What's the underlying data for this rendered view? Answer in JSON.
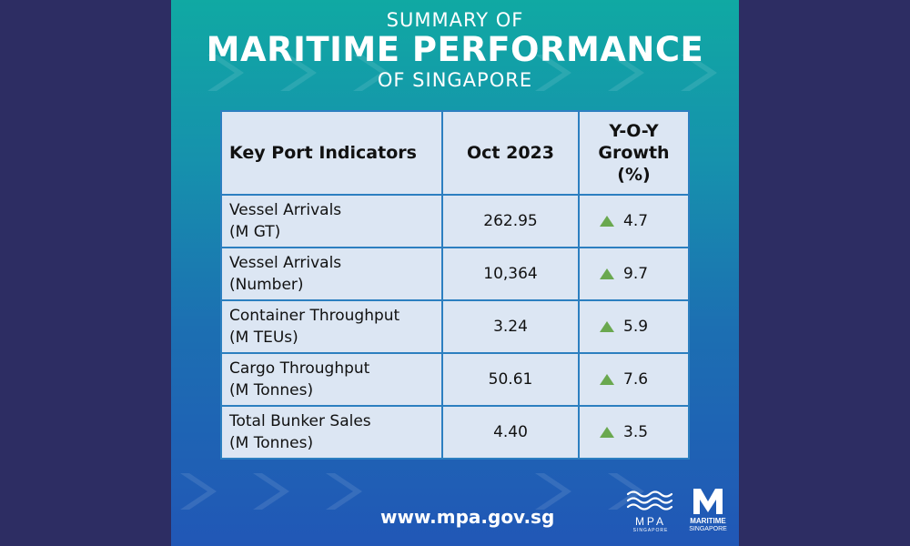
{
  "title": {
    "line1": "SUMMARY OF",
    "line2": "MARITIME PERFORMANCE",
    "line3": "OF SINGAPORE"
  },
  "table": {
    "headers": [
      "Key Port Indicators",
      "Oct 2023",
      "Y-O-Y",
      "Growth",
      "(%)"
    ],
    "rows": [
      {
        "indicator_line1": "Vessel Arrivals",
        "indicator_line2": "(M GT)",
        "value": "262.95",
        "growth": "4.7",
        "trend": "up"
      },
      {
        "indicator_line1": "Vessel Arrivals",
        "indicator_line2": "(Number)",
        "value": "10,364",
        "growth": "9.7",
        "trend": "up"
      },
      {
        "indicator_line1": "Container Throughput",
        "indicator_line2": "(M TEUs)",
        "value": "3.24",
        "growth": "5.9",
        "trend": "up"
      },
      {
        "indicator_line1": "Cargo Throughput",
        "indicator_line2": "(M Tonnes)",
        "value": "50.61",
        "growth": "7.6",
        "trend": "up"
      },
      {
        "indicator_line1": "Total Bunker Sales",
        "indicator_line2": "(M Tonnes)",
        "value": "4.40",
        "growth": "3.5",
        "trend": "up"
      }
    ]
  },
  "footer": {
    "url": "www.mpa.gov.sg",
    "mpa_logo_text": "MPA",
    "mpa_logo_sub": "SINGAPORE",
    "ms_logo_line1": "MARITIME",
    "ms_logo_line2": "SINGAPORE"
  },
  "colors": {
    "outer_bg": "#2d2d63",
    "table_bg": "#dce6f3",
    "table_border": "#2c7fc0",
    "up_arrow": "#6aa84f"
  },
  "icons": {
    "trend_up": "green-up-triangle-icon",
    "mpa_logo": "mpa-waves-logo",
    "maritime_singapore_logo": "maritime-singapore-m-logo"
  }
}
